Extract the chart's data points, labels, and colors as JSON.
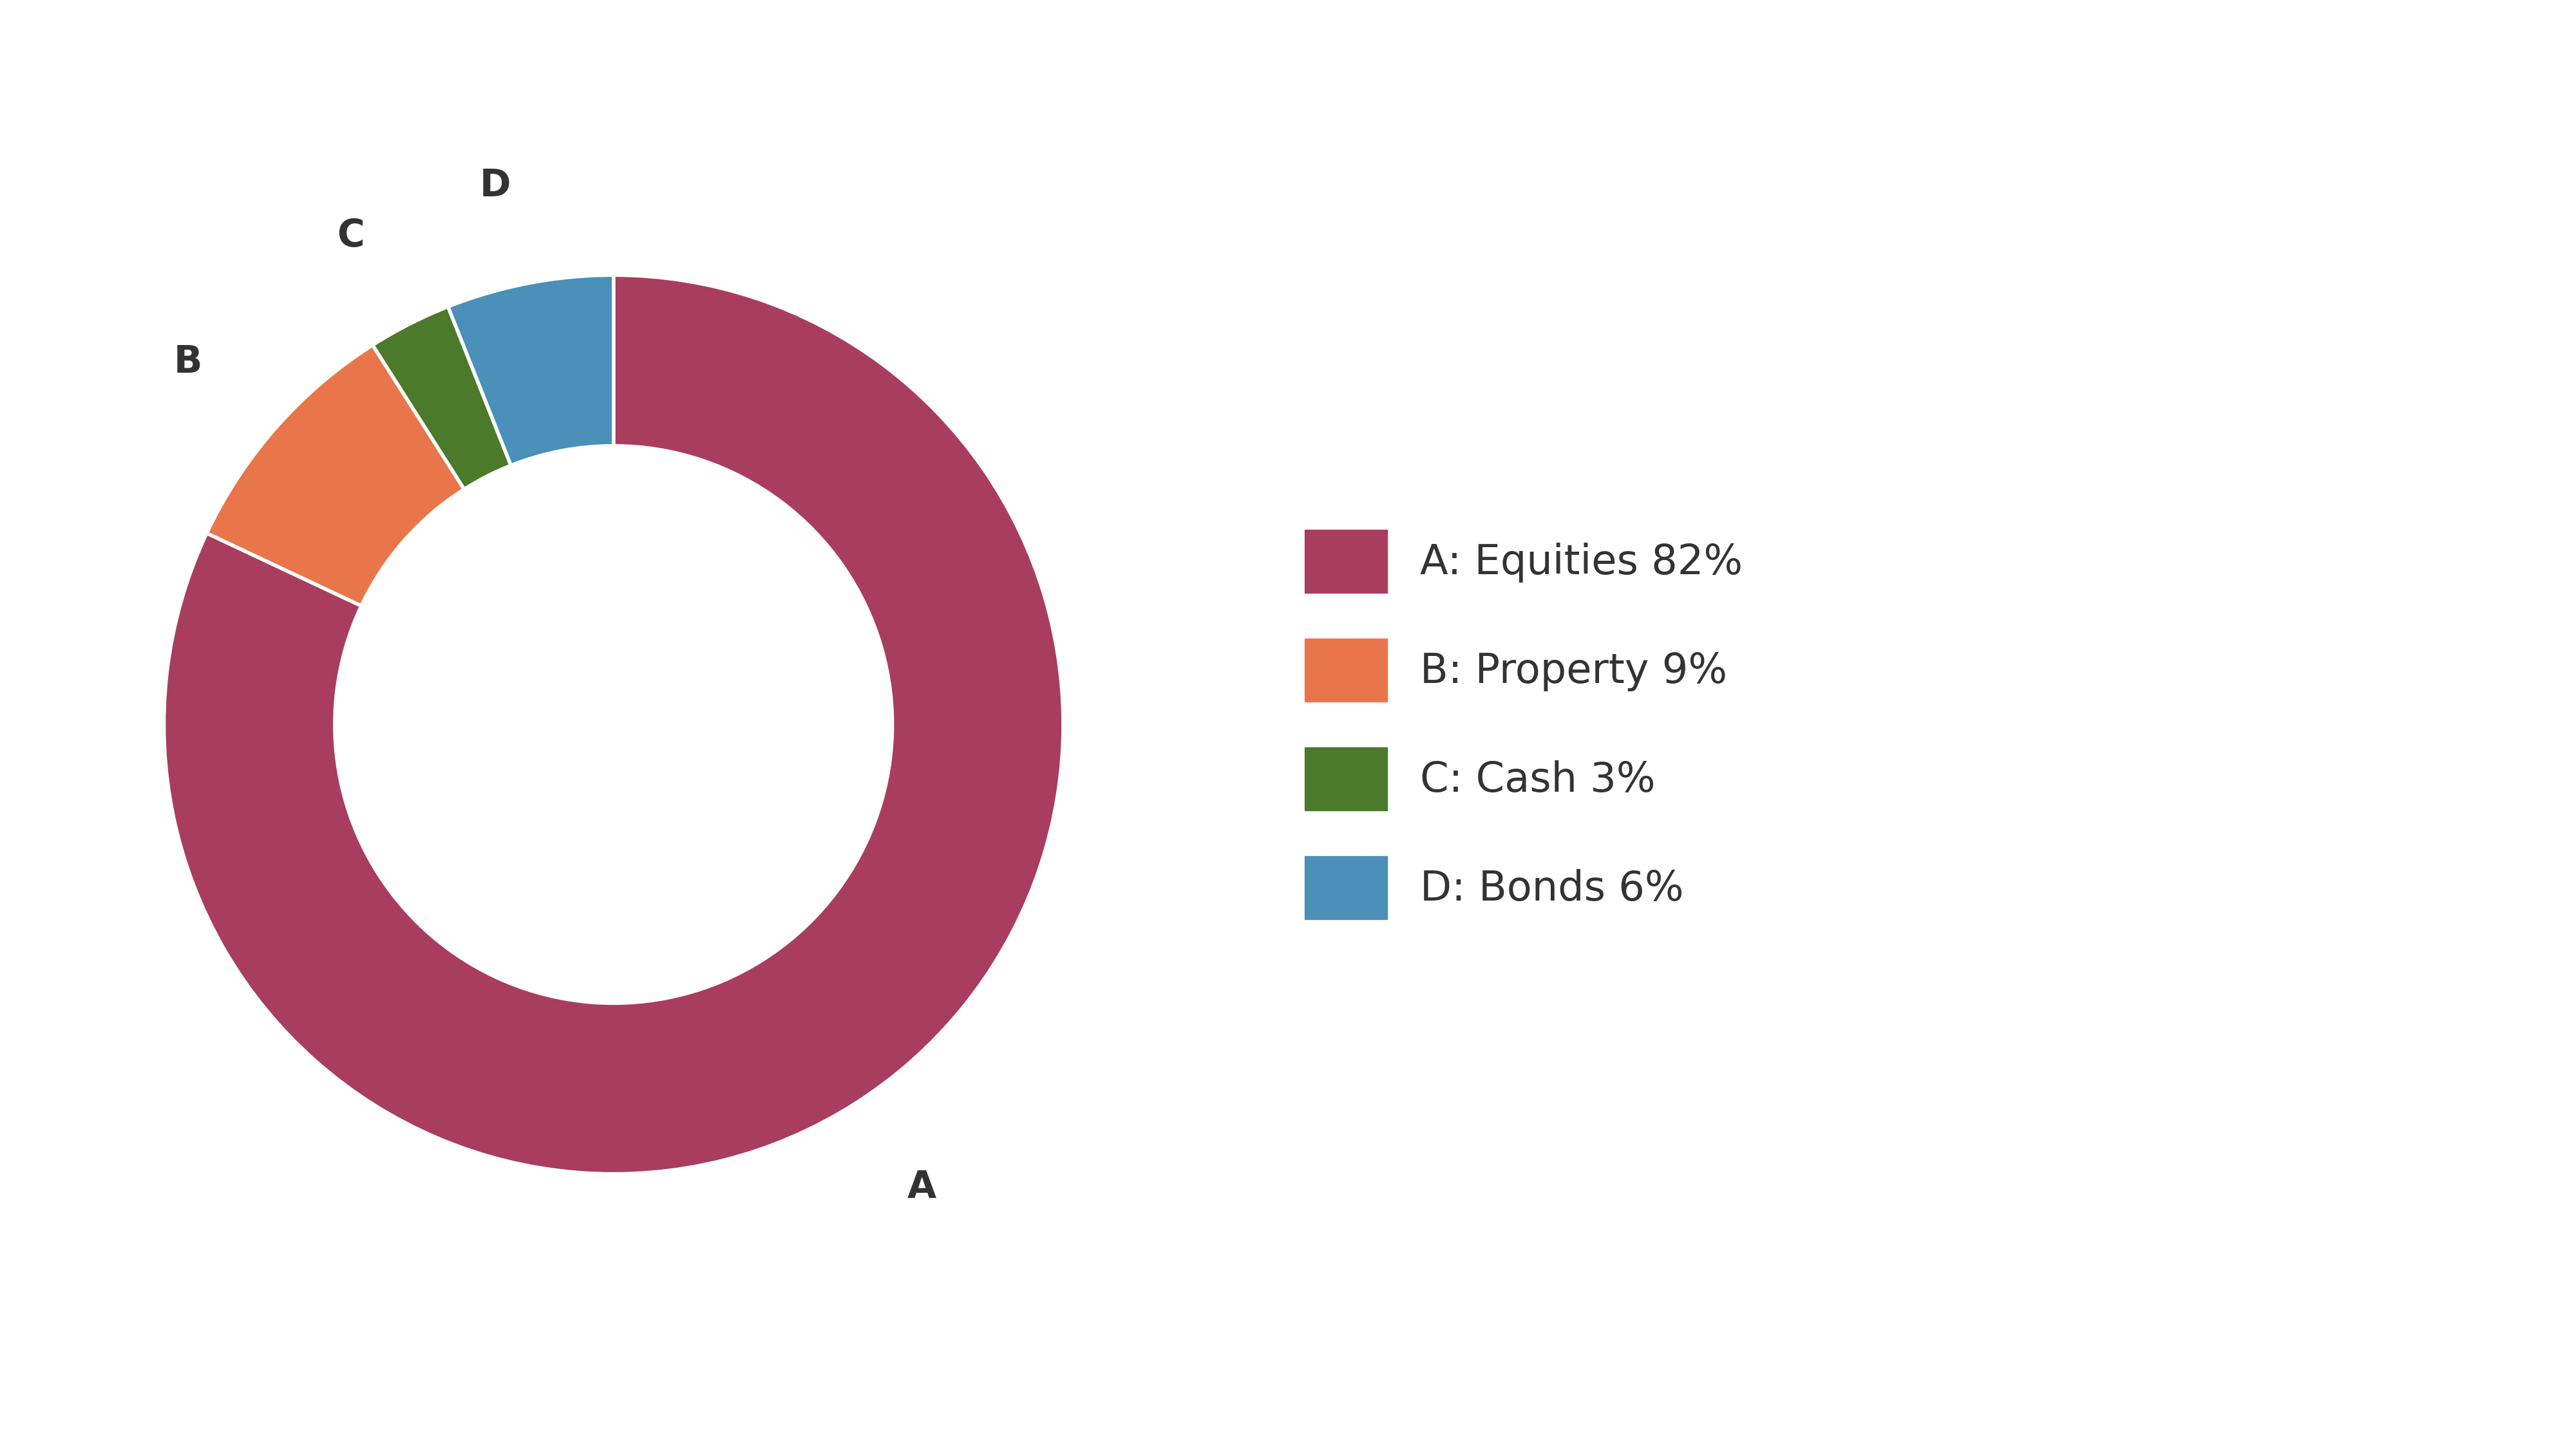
{
  "slices": [
    {
      "label": "A",
      "legend_label": "A: Equities 82%",
      "value": 82,
      "color": "#a93d5f"
    },
    {
      "label": "B",
      "legend_label": "B: Property 9%",
      "value": 9,
      "color": "#e8764a"
    },
    {
      "label": "C",
      "legend_label": "C: Cash 3%",
      "value": 3,
      "color": "#4a7a2a"
    },
    {
      "label": "D",
      "legend_label": "D: Bonds 6%",
      "value": 6,
      "color": "#4a90b8"
    }
  ],
  "background_color": "#ffffff",
  "donut_width": 0.38,
  "label_fontsize": 42,
  "legend_fontsize": 46,
  "label_color": "#333333",
  "legend_color": "#333333",
  "startangle": 90,
  "label_distance": 1.22,
  "legend_handlelength": 2.0,
  "legend_handleheight": 2.0,
  "legend_labelspacing": 1.1,
  "legend_handletextpad": 0.8
}
